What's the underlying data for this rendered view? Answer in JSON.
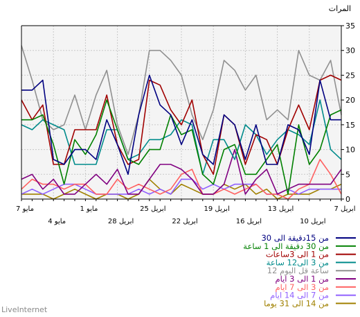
{
  "chart_data": {
    "type": "line",
    "ylabel": "المرات",
    "ylim": [
      0,
      35
    ],
    "yticks": [
      0,
      5,
      10,
      15,
      20,
      25,
      30,
      35
    ],
    "grid": true,
    "legend_position": "bottom-right",
    "x_tick_labels_upper": [
      "7 مايو",
      "1 مايو",
      "25 ابريل",
      "19 ابريل",
      "13 ابريل",
      "7 ابريل"
    ],
    "x_tick_labels_lower": [
      "4 مايو",
      "28 ابريل",
      "22 ابريل",
      "16 ابريل",
      "10 ابريل"
    ],
    "series": [
      {
        "name": "من 15دقيقة الى 30",
        "color": "#000080",
        "values": [
          22,
          22,
          24,
          8,
          7,
          10,
          10,
          8,
          16,
          11,
          5,
          17,
          25,
          19,
          17,
          11,
          16,
          9,
          7,
          17,
          15,
          8,
          15,
          7,
          7,
          15,
          14,
          9,
          24,
          16,
          16
        ]
      },
      {
        "name": "من 30 دقيقة الى 1 ساعة",
        "color": "#008000",
        "values": [
          16,
          16,
          17,
          11,
          3,
          12,
          9,
          13,
          20,
          14,
          8,
          7,
          10,
          10,
          17,
          13,
          14,
          5,
          3,
          10,
          11,
          5,
          5,
          8,
          11,
          1,
          15,
          7,
          10,
          17,
          18
        ]
      },
      {
        "name": "من 1 الى 3ساعات",
        "color": "#a00000",
        "values": [
          20,
          16,
          19,
          7,
          7,
          14,
          14,
          14,
          21,
          11,
          7,
          8,
          24,
          23,
          18,
          15,
          20,
          9,
          5,
          17,
          15,
          7,
          13,
          12,
          7,
          14,
          19,
          14,
          24,
          25,
          24
        ]
      },
      {
        "name": "من 3 الى12 ساعة",
        "color": "#008b8b",
        "values": [
          15,
          14,
          16,
          15,
          14,
          7,
          7,
          7,
          14,
          14,
          8,
          9,
          12,
          12,
          13,
          16,
          15,
          5,
          12,
          12,
          8,
          15,
          13,
          9,
          12,
          14,
          13,
          11,
          20,
          10,
          8
        ]
      },
      {
        "name": "12 ساعة قل اليوم",
        "color": "#909090",
        "values": [
          31,
          24,
          16,
          14,
          15,
          21,
          14,
          21,
          26,
          15,
          9,
          17,
          30,
          30,
          28,
          25,
          17,
          12,
          18,
          28,
          26,
          22,
          25,
          16,
          18,
          16,
          30,
          25,
          24,
          28,
          17
        ]
      },
      {
        "name": "من 1 الى 3 ايام",
        "color": "#800080",
        "values": [
          4,
          5,
          2,
          4,
          1,
          1,
          3,
          5,
          3,
          6,
          1,
          1,
          4,
          7,
          7,
          6,
          4,
          1,
          1,
          3,
          10,
          1,
          4,
          6,
          1,
          2,
          3,
          3,
          3,
          3,
          6
        ]
      },
      {
        "name": "من 3 الى 7 ايام",
        "color": "#ff6060",
        "values": [
          2,
          4,
          3,
          3,
          2,
          3,
          3,
          1,
          1,
          4,
          2,
          3,
          2,
          1,
          2,
          5,
          6,
          1,
          1,
          2,
          1,
          2,
          3,
          1,
          1,
          0,
          2,
          3,
          8,
          5,
          1
        ]
      },
      {
        "name": "من 7 الى 14 ايام",
        "color": "#9060ff",
        "values": [
          1,
          2,
          1,
          2,
          3,
          3,
          2,
          1,
          1,
          1,
          1,
          2,
          1,
          2,
          1,
          4,
          4,
          2,
          3,
          2,
          3,
          3,
          3,
          1,
          1,
          2,
          1,
          2,
          2,
          2,
          2
        ]
      },
      {
        "name": "من 14 الى 31 يوما",
        "color": "#a08000",
        "values": [
          1,
          1,
          1,
          0,
          1,
          2,
          1,
          0,
          1,
          1,
          0,
          1,
          4,
          2,
          1,
          3,
          2,
          1,
          1,
          3,
          2,
          3,
          1,
          2,
          0,
          1,
          1,
          1,
          2,
          2,
          3
        ]
      }
    ]
  },
  "branding": {
    "watermark": "LiveInternet"
  }
}
